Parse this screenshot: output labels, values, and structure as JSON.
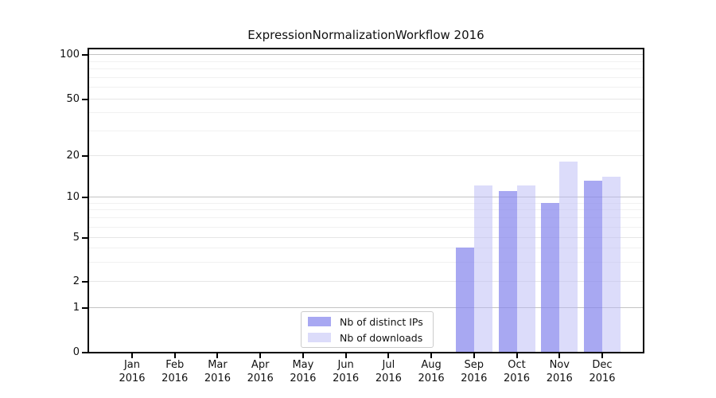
{
  "chart_data": {
    "type": "bar",
    "title": "ExpressionNormalizationWorkflow 2016",
    "year": "2016",
    "categories": [
      "Jan",
      "Feb",
      "Mar",
      "Apr",
      "May",
      "Jun",
      "Jul",
      "Aug",
      "Sep",
      "Oct",
      "Nov",
      "Dec"
    ],
    "series": [
      {
        "name": "Nb of distinct IPs",
        "color": "#8686ed",
        "alpha": 0.72,
        "values": [
          null,
          null,
          null,
          null,
          null,
          null,
          null,
          null,
          4,
          11,
          9,
          13
        ]
      },
      {
        "name": "Nb of downloads",
        "color": "#b9b9f5",
        "alpha": 0.5,
        "values": [
          null,
          null,
          null,
          null,
          null,
          null,
          null,
          null,
          12,
          12,
          18,
          14
        ]
      }
    ],
    "yscale": "symlog",
    "ylim": [
      0,
      100
    ],
    "y_ticks": [
      0,
      1,
      2,
      5,
      10,
      20,
      50,
      100
    ],
    "y_minor_ticks": [
      3,
      4,
      6,
      7,
      8,
      9,
      30,
      40,
      60,
      70,
      80,
      90
    ],
    "xlabel": "",
    "ylabel": "",
    "grid": true,
    "legend_position": "lower-center-inside"
  },
  "colors": {
    "grid_minor": "#f1f1f1",
    "grid_major": "#e6e6e6",
    "grid_decade": "#c3c3c3",
    "spine": "#000000",
    "background": "#ffffff"
  }
}
